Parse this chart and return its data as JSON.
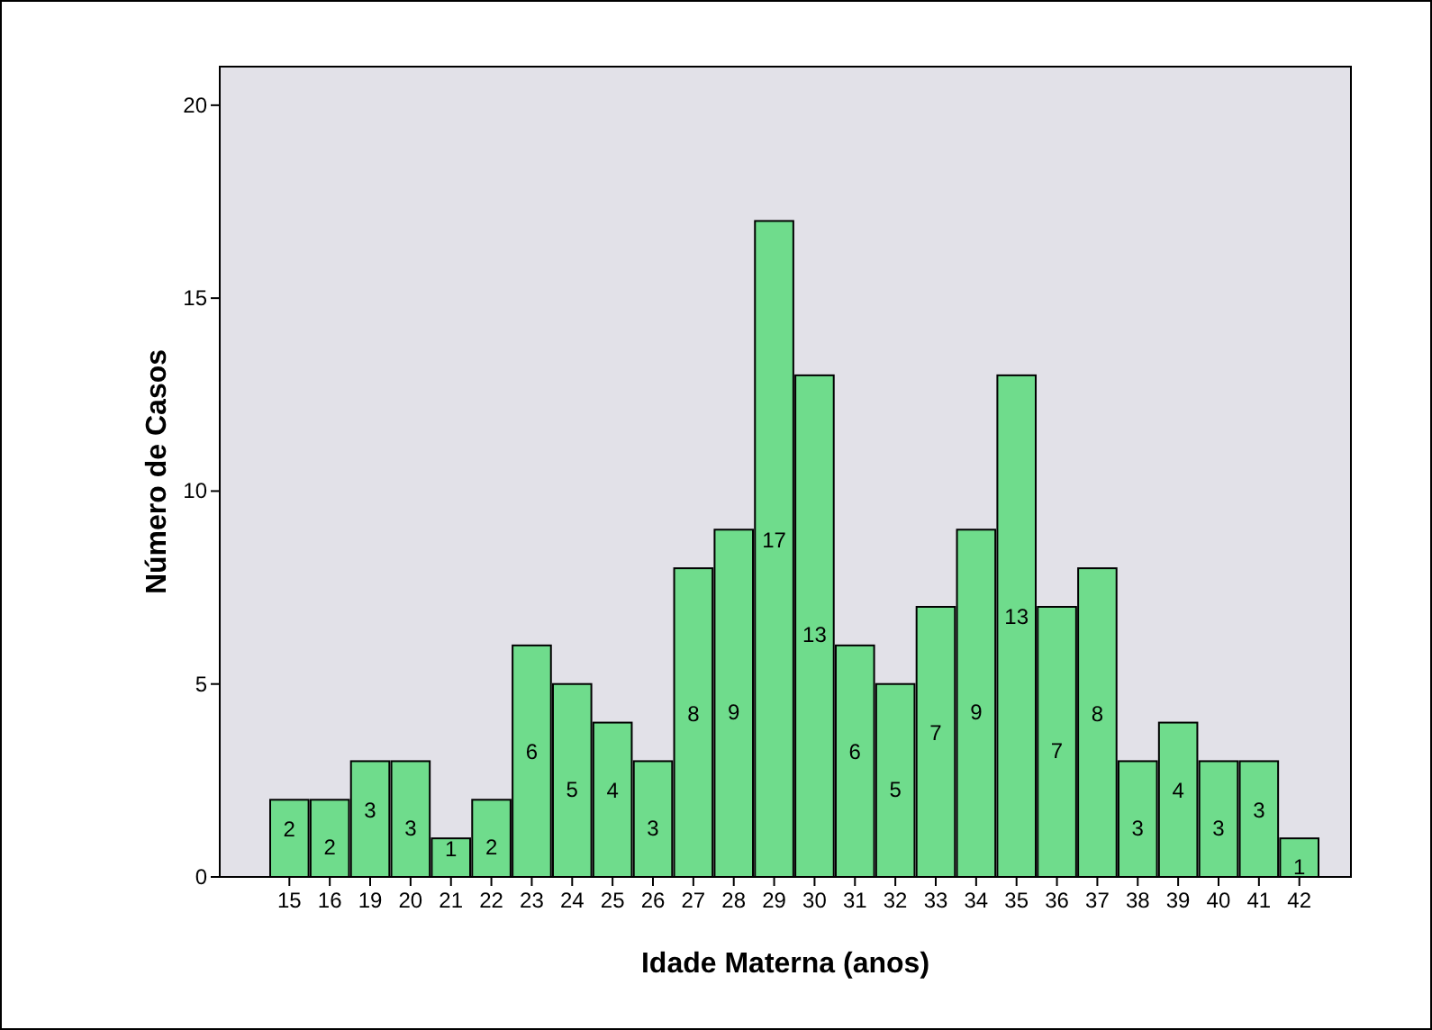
{
  "chart_data": {
    "type": "bar",
    "xlabel": "Idade Materna (anos)",
    "ylabel": "Número de Casos",
    "categories": [
      "15",
      "16",
      "19",
      "20",
      "21",
      "22",
      "23",
      "24",
      "25",
      "26",
      "27",
      "28",
      "29",
      "30",
      "31",
      "32",
      "33",
      "34",
      "35",
      "36",
      "37",
      "38",
      "39",
      "40",
      "41",
      "42"
    ],
    "values": [
      2,
      2,
      3,
      3,
      1,
      2,
      6,
      5,
      4,
      3,
      8,
      9,
      17,
      13,
      6,
      5,
      7,
      9,
      13,
      7,
      8,
      3,
      4,
      3,
      3,
      1
    ],
    "color": "#6fdc8c",
    "ylim": [
      0,
      21
    ],
    "yticks": [
      0,
      5,
      10,
      15,
      20
    ],
    "grid": false,
    "data_labels": true
  }
}
